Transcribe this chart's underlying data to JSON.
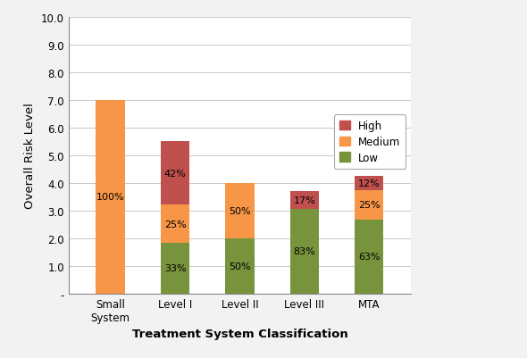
{
  "categories": [
    "Small\nSystem",
    "Level I",
    "Level II",
    "Level III",
    "MTA"
  ],
  "low_values": [
    0.0,
    1.833,
    2.0,
    3.071,
    2.677
  ],
  "medium_values": [
    7.0,
    1.375,
    2.0,
    0.0,
    1.063
  ],
  "high_values": [
    0.0,
    2.292,
    0.0,
    0.629,
    0.51
  ],
  "low_pcts": [
    "",
    "33%",
    "50%",
    "83%",
    "63%"
  ],
  "medium_pcts": [
    "100%",
    "25%",
    "50%",
    "",
    "25%"
  ],
  "high_pcts": [
    "",
    "42%",
    "",
    "17%",
    "12%"
  ],
  "low_color": "#77933C",
  "medium_color": "#F79646",
  "high_color": "#C0504D",
  "ylabel": "Overall Risk Level",
  "xlabel": "Treatment System Classification",
  "ylim": [
    0,
    10.0
  ],
  "yticks": [
    0.0,
    1.0,
    2.0,
    3.0,
    4.0,
    5.0,
    6.0,
    7.0,
    8.0,
    9.0,
    10.0
  ],
  "ytick_labels": [
    "-",
    "1.0",
    "2.0",
    "3.0",
    "4.0",
    "5.0",
    "6.0",
    "7.0",
    "8.0",
    "9.0",
    "10.0"
  ],
  "bar_width": 0.45,
  "background_color": "#ffffff",
  "figure_bg": "#f0f0f0"
}
